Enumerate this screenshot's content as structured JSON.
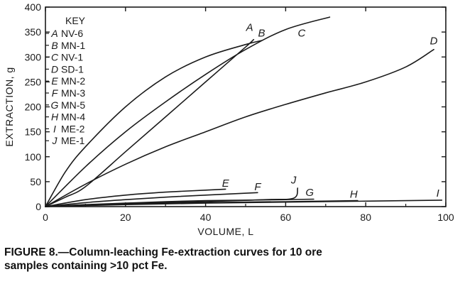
{
  "chart_data": {
    "type": "line",
    "xlabel": "VOLUME, L",
    "ylabel": "EXTRACTION, g",
    "xlim": [
      0,
      100
    ],
    "ylim": [
      0,
      400
    ],
    "xticks": [
      "0",
      "20",
      "40",
      "60",
      "80",
      "100"
    ],
    "yticks": [
      "0",
      "50",
      "100",
      "150",
      "200",
      "250",
      "300",
      "350",
      "400"
    ],
    "grid": false,
    "legend": {
      "title": "KEY",
      "placement": "top-left",
      "entries": [
        {
          "letter": "A",
          "name": "NV-6"
        },
        {
          "letter": "B",
          "name": "MN-1"
        },
        {
          "letter": "C",
          "name": "NV-1"
        },
        {
          "letter": "D",
          "name": "SD-1"
        },
        {
          "letter": "E",
          "name": "MN-2"
        },
        {
          "letter": "F",
          "name": "MN-3"
        },
        {
          "letter": "G",
          "name": "MN-5"
        },
        {
          "letter": "H",
          "name": "MN-4"
        },
        {
          "letter": "I",
          "name": "ME-2"
        },
        {
          "letter": "J",
          "name": "ME-1"
        }
      ]
    },
    "series": [
      {
        "name": "A",
        "x": [
          0,
          5,
          10,
          20,
          30,
          40,
          50,
          52
        ],
        "y": [
          0,
          19,
          40,
          110,
          180,
          250,
          320,
          335
        ]
      },
      {
        "name": "B",
        "x": [
          0,
          5,
          10,
          20,
          30,
          40,
          50,
          54
        ],
        "y": [
          0,
          70,
          120,
          200,
          260,
          300,
          325,
          333
        ]
      },
      {
        "name": "C",
        "x": [
          0,
          10,
          20,
          30,
          40,
          50,
          60,
          71
        ],
        "y": [
          0,
          80,
          150,
          210,
          265,
          315,
          355,
          380
        ]
      },
      {
        "name": "D",
        "x": [
          0,
          10,
          20,
          30,
          40,
          50,
          60,
          70,
          80,
          90,
          97
        ],
        "y": [
          0,
          45,
          85,
          120,
          150,
          180,
          205,
          228,
          250,
          280,
          315
        ]
      },
      {
        "name": "E",
        "x": [
          0,
          10,
          20,
          30,
          40,
          45
        ],
        "y": [
          0,
          14,
          23,
          29,
          33,
          35
        ]
      },
      {
        "name": "F",
        "x": [
          0,
          10,
          20,
          30,
          40,
          53
        ],
        "y": [
          0,
          8,
          14,
          19,
          23,
          28
        ]
      },
      {
        "name": "G",
        "x": [
          0,
          10,
          20,
          30,
          40,
          50,
          60,
          67
        ],
        "y": [
          0,
          4,
          7,
          10,
          12,
          13,
          14,
          15
        ]
      },
      {
        "name": "H",
        "x": [
          0,
          20,
          40,
          60,
          78
        ],
        "y": [
          0,
          5,
          8,
          10,
          12
        ]
      },
      {
        "name": "I",
        "x": [
          0,
          20,
          40,
          60,
          80,
          99
        ],
        "y": [
          0,
          4,
          7,
          9,
          11,
          13
        ]
      },
      {
        "name": "J",
        "x": [
          0,
          20,
          40,
          55,
          62,
          63
        ],
        "y": [
          0,
          6,
          10,
          14,
          17,
          37
        ]
      }
    ],
    "curve_labels": [
      {
        "text": "A",
        "x": 51,
        "y": 352
      },
      {
        "text": "B",
        "x": 54,
        "y": 341
      },
      {
        "text": "C",
        "x": 64,
        "y": 341
      },
      {
        "text": "D",
        "x": 97,
        "y": 325
      },
      {
        "text": "E",
        "x": 45,
        "y": 40
      },
      {
        "text": "F",
        "x": 53,
        "y": 33
      },
      {
        "text": "G",
        "x": 66,
        "y": 21
      },
      {
        "text": "H",
        "x": 77,
        "y": 18
      },
      {
        "text": "I",
        "x": 98,
        "y": 20
      },
      {
        "text": "J",
        "x": 62,
        "y": 46
      }
    ]
  },
  "caption": {
    "line1": "FIGURE 8.—Column-leaching Fe-extraction curves for 10 ore",
    "line2": "samples containing >10 pct Fe."
  }
}
